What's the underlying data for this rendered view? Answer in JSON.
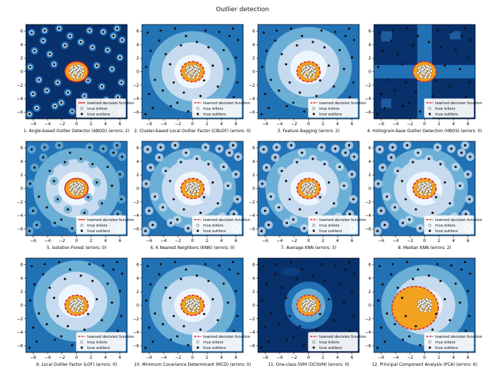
{
  "title": "Outlier detection",
  "colors": {
    "bg_dark": "#08306b",
    "bg_mid": "#2171b5",
    "bg_light": "#6baed6",
    "bg_lighter": "#c6dbef",
    "bg_lightest": "#eef5fc",
    "inlier_fill": "#f3a21f",
    "decision_line": "#d62728",
    "outlier": "#111111",
    "inlier_marker": "#ffffff"
  },
  "legend": {
    "decision": "learned decision function",
    "inliers": "true inliers",
    "outliers": "true outliers"
  },
  "chart_data": [
    {
      "type": "scatter",
      "xlabel": "1. Angle-based Outlier Detector (ABOD) (errors: 2)",
      "xlim": [
        -7,
        7
      ],
      "ylim": [
        -7,
        7
      ],
      "xticks": [
        -6,
        -4,
        -2,
        0,
        2,
        4,
        6
      ],
      "yticks": [
        -6,
        -4,
        -2,
        0,
        2,
        4,
        6
      ],
      "decision_style": "solid",
      "errors": 2
    },
    {
      "type": "scatter",
      "xlabel": "2. Cluster-based Local Outlier Factor (CBLOF) (errors: 0)",
      "xlim": [
        -7,
        7
      ],
      "ylim": [
        -7,
        7
      ],
      "xticks": [
        -6,
        -4,
        -2,
        0,
        2,
        4,
        6
      ],
      "yticks": [
        -6,
        -4,
        -2,
        0,
        2,
        4,
        6
      ],
      "decision_style": "dashed",
      "errors": 0
    },
    {
      "type": "scatter",
      "xlabel": "3. Feature Bagging (errors: 2)",
      "xlim": [
        -7,
        7
      ],
      "ylim": [
        -7,
        7
      ],
      "xticks": [
        -6,
        -4,
        -2,
        0,
        2,
        4,
        6
      ],
      "yticks": [
        -6,
        -4,
        -2,
        0,
        2,
        4,
        6
      ],
      "decision_style": "dashed",
      "errors": 2
    },
    {
      "type": "scatter",
      "xlabel": "4. Histogram-base Outlier Detection (HBOS) (errors: 0)",
      "xlim": [
        -7,
        7
      ],
      "ylim": [
        -7,
        7
      ],
      "xticks": [
        -6,
        -4,
        -2,
        0,
        2,
        4,
        6
      ],
      "yticks": [
        -6,
        -4,
        -2,
        0,
        2,
        4,
        6
      ],
      "decision_style": "dashed",
      "errors": 0
    },
    {
      "type": "scatter",
      "xlabel": "5. Isolation Forest (errors: 0)",
      "xlim": [
        -7,
        7
      ],
      "ylim": [
        -7,
        7
      ],
      "xticks": [
        -6,
        -4,
        -2,
        0,
        2,
        4,
        6
      ],
      "yticks": [
        -6,
        -4,
        -2,
        0,
        2,
        4,
        6
      ],
      "decision_style": "solid",
      "errors": 0
    },
    {
      "type": "scatter",
      "xlabel": "6. K Nearest Neighbors (KNN) (errors: 0)",
      "xlim": [
        -7,
        7
      ],
      "ylim": [
        -7,
        7
      ],
      "xticks": [
        -6,
        -4,
        -2,
        0,
        2,
        4,
        6
      ],
      "yticks": [
        -6,
        -4,
        -2,
        0,
        2,
        4,
        6
      ],
      "decision_style": "dashed",
      "errors": 0
    },
    {
      "type": "scatter",
      "xlabel": "7. Average KNN (errors: 3)",
      "xlim": [
        -7,
        7
      ],
      "ylim": [
        -7,
        7
      ],
      "xticks": [
        -6,
        -4,
        -2,
        0,
        2,
        4,
        6
      ],
      "yticks": [
        -6,
        -4,
        -2,
        0,
        2,
        4,
        6
      ],
      "decision_style": "dashed",
      "errors": 3
    },
    {
      "type": "scatter",
      "xlabel": "8. Median KNN (errors: 2)",
      "xlim": [
        -7,
        7
      ],
      "ylim": [
        -7,
        7
      ],
      "xticks": [
        -6,
        -4,
        -2,
        0,
        2,
        4,
        6
      ],
      "yticks": [
        -6,
        -4,
        -2,
        0,
        2,
        4,
        6
      ],
      "decision_style": "dashed",
      "errors": 2
    },
    {
      "type": "scatter",
      "xlabel": "9. Local Outlier Factor (LOF) (errors: 0)",
      "xlim": [
        -7,
        7
      ],
      "ylim": [
        -7,
        7
      ],
      "xticks": [
        -6,
        -4,
        -2,
        0,
        2,
        4,
        6
      ],
      "yticks": [
        -6,
        -4,
        -2,
        0,
        2,
        4,
        6
      ],
      "decision_style": "dashed",
      "errors": 0
    },
    {
      "type": "scatter",
      "xlabel": "10. Minimum Covariance Determinant (MCD) (errors: 0)",
      "xlim": [
        -7,
        7
      ],
      "ylim": [
        -7,
        7
      ],
      "xticks": [
        -6,
        -4,
        -2,
        0,
        2,
        4,
        6
      ],
      "yticks": [
        -6,
        -4,
        -2,
        0,
        2,
        4,
        6
      ],
      "decision_style": "dashed",
      "errors": 0
    },
    {
      "type": "scatter",
      "xlabel": "11. One-class SVM (OCSVM) (errors: 0)",
      "xlim": [
        -7,
        7
      ],
      "ylim": [
        -7,
        7
      ],
      "xticks": [
        -6,
        -4,
        -2,
        0,
        2,
        4,
        6
      ],
      "yticks": [
        -6,
        -4,
        -2,
        0,
        2,
        4,
        6
      ],
      "decision_style": "dashed",
      "errors": 0
    },
    {
      "type": "scatter",
      "xlabel": "12. Principal Component Analysis (PCA) (errors: 6)",
      "xlim": [
        -7,
        7
      ],
      "ylim": [
        -7,
        7
      ],
      "xticks": [
        -6,
        -4,
        -2,
        0,
        2,
        4,
        6
      ],
      "yticks": [
        -6,
        -4,
        -2,
        0,
        2,
        4,
        6
      ],
      "decision_style": "dashed",
      "errors": 6
    }
  ],
  "inliers": [
    [
      -0.3,
      0.2
    ],
    [
      0.1,
      0.5
    ],
    [
      0.4,
      -0.2
    ],
    [
      -0.5,
      -0.4
    ],
    [
      0.2,
      -0.6
    ],
    [
      0.6,
      0.3
    ],
    [
      -0.2,
      0.8
    ],
    [
      0.8,
      -0.4
    ],
    [
      -0.7,
      0.1
    ],
    [
      0.0,
      0.0
    ],
    [
      0.5,
      0.7
    ],
    [
      -0.4,
      -0.8
    ],
    [
      0.9,
      0.1
    ],
    [
      -0.8,
      0.5
    ],
    [
      0.3,
      0.9
    ],
    [
      -0.1,
      -0.3
    ],
    [
      0.7,
      -0.8
    ],
    [
      -0.6,
      0.7
    ],
    [
      0.2,
      0.2
    ],
    [
      -0.3,
      -0.1
    ],
    [
      0.4,
      0.4
    ],
    [
      -0.9,
      -0.2
    ],
    [
      0.1,
      -0.9
    ],
    [
      0.6,
      -0.1
    ],
    [
      -0.5,
      0.3
    ],
    [
      0.3,
      -0.4
    ],
    [
      -0.2,
      0.4
    ],
    [
      0.8,
      0.6
    ],
    [
      -0.6,
      -0.6
    ],
    [
      0.0,
      0.6
    ]
  ],
  "outliers": [
    [
      -6.2,
      5.8
    ],
    [
      -4.6,
      4.6
    ],
    [
      -2.4,
      6.4
    ],
    [
      -0.9,
      5.3
    ],
    [
      1.8,
      6.1
    ],
    [
      3.7,
      5.9
    ],
    [
      5.6,
      6.4
    ],
    [
      6.3,
      4.7
    ],
    [
      -5.8,
      3.1
    ],
    [
      -3.7,
      2.6
    ],
    [
      -1.6,
      3.9
    ],
    [
      2.2,
      3.6
    ],
    [
      4.3,
      3.2
    ],
    [
      6.0,
      2.1
    ],
    [
      -6.4,
      0.7
    ],
    [
      -3.1,
      1.1
    ],
    [
      2.8,
      0.9
    ],
    [
      4.9,
      0.4
    ],
    [
      -5.2,
      -1.2
    ],
    [
      -2.6,
      -1.6
    ],
    [
      1.6,
      -1.3
    ],
    [
      3.5,
      -2.2
    ],
    [
      6.2,
      -1.6
    ],
    [
      -6.0,
      -3.3
    ],
    [
      -4.1,
      -2.8
    ],
    [
      -1.2,
      -3.1
    ],
    [
      1.1,
      -3.6
    ],
    [
      4.1,
      -4.2
    ],
    [
      5.7,
      -3.8
    ],
    [
      -5.5,
      -5.4
    ],
    [
      -3.0,
      -5.1
    ],
    [
      -0.6,
      -5.9
    ],
    [
      1.9,
      -5.3
    ],
    [
      3.4,
      -6.2
    ],
    [
      6.1,
      -5.9
    ],
    [
      -4.4,
      6.1
    ],
    [
      0.6,
      4.4
    ],
    [
      -2.1,
      -4.6
    ],
    [
      5.1,
      5.3
    ],
    [
      -6.5,
      -6.3
    ]
  ]
}
